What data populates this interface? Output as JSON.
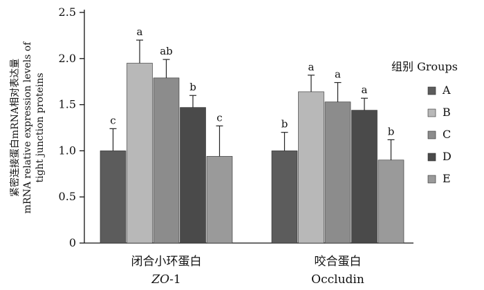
{
  "chart_data": {
    "type": "bar",
    "ylabel_lines": [
      "紧密连接蛋白mRNA相对表达量",
      "mRNA relative expression levels of",
      "tight junction proteins"
    ],
    "ylim": [
      0,
      2.5
    ],
    "yticks": [
      "0",
      "0.5",
      "1.0",
      "1.5",
      "2.0",
      "2.5"
    ],
    "groups": [
      {
        "label_cn": "闭合小环蛋白",
        "label_en_italic": "ZO",
        "label_en_suffix": "-1"
      },
      {
        "label_cn": "咬合蛋白",
        "label_en_italic": "",
        "label_en_suffix": "Occludin"
      }
    ],
    "legend_title": "组别 Groups",
    "series": [
      {
        "name": "A",
        "color": "#5c5c5c",
        "values": [
          1.0,
          1.0
        ],
        "errors": [
          0.24,
          0.2
        ],
        "sig": [
          "c",
          "b"
        ]
      },
      {
        "name": "B",
        "color": "#b8b8b8",
        "values": [
          1.95,
          1.64
        ],
        "errors": [
          0.25,
          0.18
        ],
        "sig": [
          "a",
          "a"
        ]
      },
      {
        "name": "C",
        "color": "#8c8c8c",
        "values": [
          1.79,
          1.53
        ],
        "errors": [
          0.2,
          0.21
        ],
        "sig": [
          "ab",
          "a"
        ]
      },
      {
        "name": "D",
        "color": "#4a4a4a",
        "values": [
          1.47,
          1.44
        ],
        "errors": [
          0.13,
          0.13
        ],
        "sig": [
          "b",
          "a"
        ]
      },
      {
        "name": "E",
        "color": "#9a9a9a",
        "values": [
          0.94,
          0.9
        ],
        "errors": [
          0.33,
          0.22
        ],
        "sig": [
          "c",
          "b"
        ]
      }
    ]
  }
}
